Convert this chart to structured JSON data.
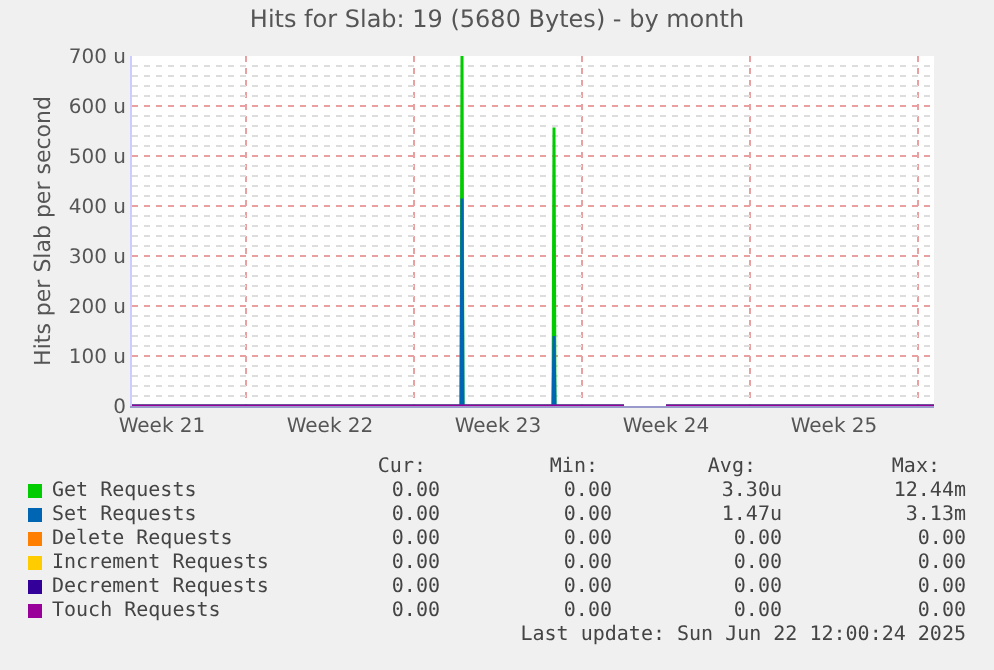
{
  "chart_data": {
    "type": "area",
    "title": "Hits for Slab: 19 (5680 Bytes) - by month",
    "ylabel": "Hits per Slab per second",
    "x": [
      "2025-05-21T06:00",
      "2025-06-03T23:00",
      "2025-06-04T00:00",
      "2025-06-04T01:00",
      "2025-06-07T19:00",
      "2025-06-07T20:00",
      "2025-06-07T21:00",
      "2025-06-10T18:00",
      "2025-06-11T12:00",
      "2025-06-12T12:00",
      "2025-06-23T16:00"
    ],
    "series": [
      {
        "name": "Get Requests",
        "color": "#00cc00",
        "values": [
          0,
          0,
          700,
          0,
          0,
          557,
          0,
          0,
          null,
          0,
          0
        ]
      },
      {
        "name": "Set Requests",
        "color": "#0066b3",
        "values": [
          0,
          0,
          415,
          0,
          0,
          140,
          0,
          0,
          null,
          0,
          0
        ]
      },
      {
        "name": "Delete Requests",
        "type": "line",
        "color": "#ff8000",
        "values": [
          null,
          null,
          null,
          null,
          null,
          null,
          null,
          null,
          null,
          null,
          null
        ]
      },
      {
        "name": "Increment Requests",
        "type": "line",
        "color": "#ffcc00",
        "values": [
          null,
          null,
          null,
          null,
          null,
          null,
          null,
          null,
          null,
          null,
          null
        ]
      },
      {
        "name": "Decrement Requests",
        "type": "line",
        "color": "#330099",
        "values": [
          null,
          null,
          null,
          null,
          null,
          null,
          null,
          null,
          null,
          null,
          null
        ]
      },
      {
        "name": "Touch Requests",
        "type": "line",
        "color": "#990099",
        "values": [
          0,
          0,
          0,
          0,
          0,
          0,
          0,
          0,
          null,
          0,
          0
        ]
      }
    ],
    "xlim": [
      "2025-05-21T06:00",
      "2025-06-23T16:00"
    ],
    "xticks": [
      {
        "value": "2025-05-22T12:00",
        "label": "Week 21"
      },
      {
        "value": "2025-05-29T12:00",
        "label": "Week 22"
      },
      {
        "value": "2025-06-05T12:00",
        "label": "Week 23"
      },
      {
        "value": "2025-06-12T12:00",
        "label": "Week 24"
      },
      {
        "value": "2025-06-19T12:00",
        "label": "Week 25"
      }
    ],
    "ylim": [
      0,
      700
    ],
    "yticks": [
      0,
      {
        "value": 100,
        "label": "100 u"
      },
      {
        "value": 200,
        "label": "200 u"
      },
      {
        "value": 300,
        "label": "300 u"
      },
      {
        "value": 400,
        "label": "400 u"
      },
      {
        "value": 500,
        "label": "500 u"
      },
      {
        "value": 600,
        "label": "600 u"
      },
      {
        "value": 700,
        "label": "700 u"
      }
    ],
    "grid": true,
    "legend": "bottom",
    "annotations": [
      "Cur:",
      "Min:",
      "Avg:",
      "Max:",
      "0.00",
      "0.00",
      "3.30u",
      "12.44m",
      "0.00",
      "0.00",
      "1.47u",
      "3.13m",
      "0.00",
      "0.00",
      "0.00",
      "0.00",
      "0.00",
      "0.00",
      "0.00",
      "0.00",
      "0.00",
      "0.00",
      "0.00",
      "0.00",
      "0.00",
      "0.00",
      "0.00",
      "0.00",
      "Last update: Sun Jun 22 12:00:24 2025"
    ]
  }
}
